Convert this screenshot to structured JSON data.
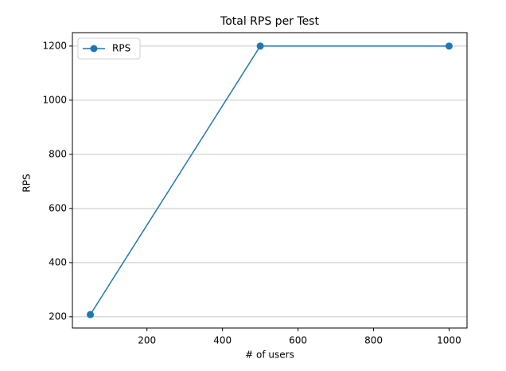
{
  "chart_data": {
    "type": "line",
    "title": "Total RPS per Test",
    "xlabel": "# of users",
    "ylabel": "RPS",
    "x": [
      50,
      500,
      1000
    ],
    "series": [
      {
        "name": "RPS",
        "color": "#1f77b4",
        "values": [
          208,
          1200,
          1200
        ]
      }
    ],
    "xlim": [
      2.5,
      1047.5
    ],
    "xticks": [
      200,
      400,
      600,
      800,
      1000
    ],
    "ylim": [
      158.4,
      1249.6
    ],
    "yticks": [
      200,
      400,
      600,
      800,
      1000,
      1200
    ],
    "grid": "y",
    "legend": "upper left"
  }
}
